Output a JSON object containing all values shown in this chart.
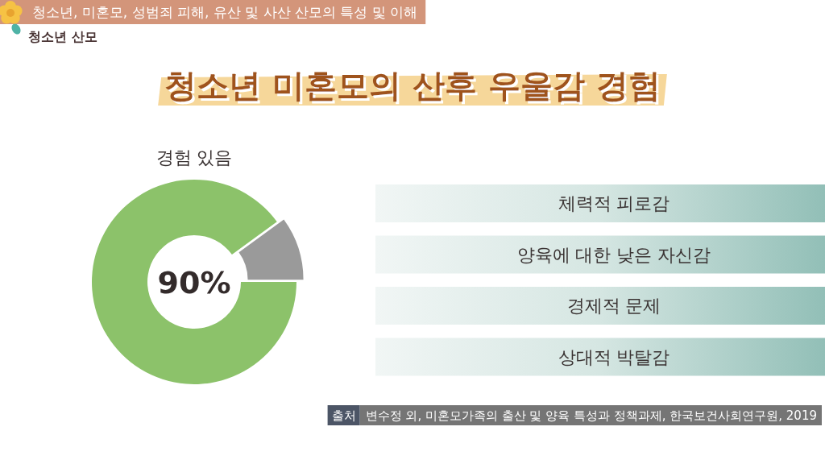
{
  "chart_data": {
    "type": "donut",
    "title": "청소년 미혼모의 산후 우울감 경험",
    "categories": [
      "경험 있음",
      null
    ],
    "values": [
      90,
      10
    ],
    "colors": [
      "#8cc26a",
      "#9a9a9a"
    ],
    "value_labels": [
      "90%",
      null
    ],
    "annotations": [
      "청소년, 미혼모, 성범죄 피해, 유산 및 사산 산모의 특성 및 이해",
      "청소년 산모",
      "체력적 피로감",
      "양육에 대한 낮은 자신감",
      "경제적 문제",
      "상대적 박탈감",
      "출처",
      "변수정 외, 미혼모가족의 출산 및 양육 특성과 정책과제, 한국보건사회연구원, 2019"
    ]
  }
}
